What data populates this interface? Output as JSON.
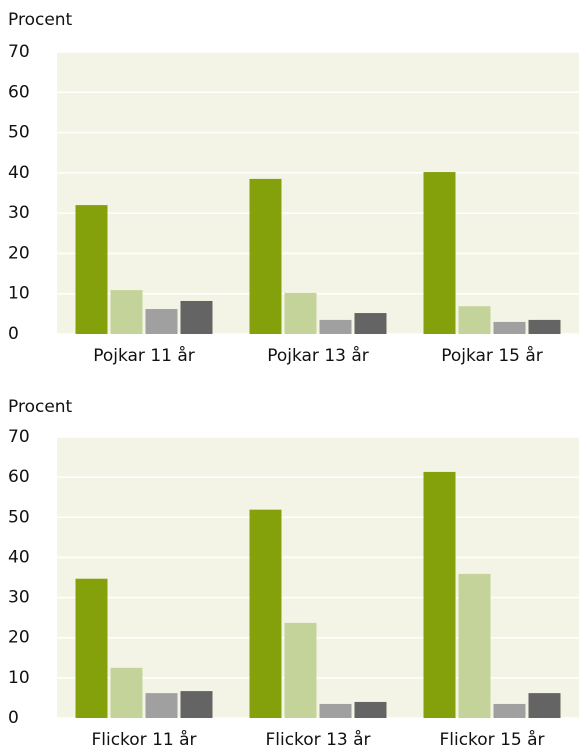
{
  "chart_data": [
    {
      "type": "bar",
      "ylabel": "Procent",
      "categories": [
        "Pojkar 11 år",
        "Pojkar 13 år",
        "Pojkar 15 år"
      ],
      "series": [
        {
          "color": "#84a10c",
          "values": [
            32.0,
            38.5,
            40.2
          ]
        },
        {
          "color": "#c4d39a",
          "values": [
            10.9,
            10.2,
            6.9
          ]
        },
        {
          "color": "#a0a0a0",
          "values": [
            6.2,
            3.5,
            3.0
          ]
        },
        {
          "color": "#646464",
          "values": [
            8.2,
            5.2,
            3.5
          ]
        }
      ],
      "ylim": [
        0,
        70
      ],
      "yticks": [
        0,
        10,
        20,
        30,
        40,
        50,
        60,
        70
      ],
      "grid": true
    },
    {
      "type": "bar",
      "ylabel": "Procent",
      "categories": [
        "Flickor 11 år",
        "Flickor 13 år",
        "Flickor 15 år"
      ],
      "series": [
        {
          "color": "#84a10c",
          "values": [
            34.7,
            51.9,
            61.3
          ]
        },
        {
          "color": "#c4d39a",
          "values": [
            12.5,
            23.7,
            35.9
          ]
        },
        {
          "color": "#a0a0a0",
          "values": [
            6.2,
            3.5,
            3.5
          ]
        },
        {
          "color": "#646464",
          "values": [
            6.7,
            4.0,
            6.2
          ]
        }
      ],
      "ylim": [
        0,
        70
      ],
      "yticks": [
        0,
        10,
        20,
        30,
        40,
        50,
        60,
        70
      ],
      "grid": true
    }
  ]
}
